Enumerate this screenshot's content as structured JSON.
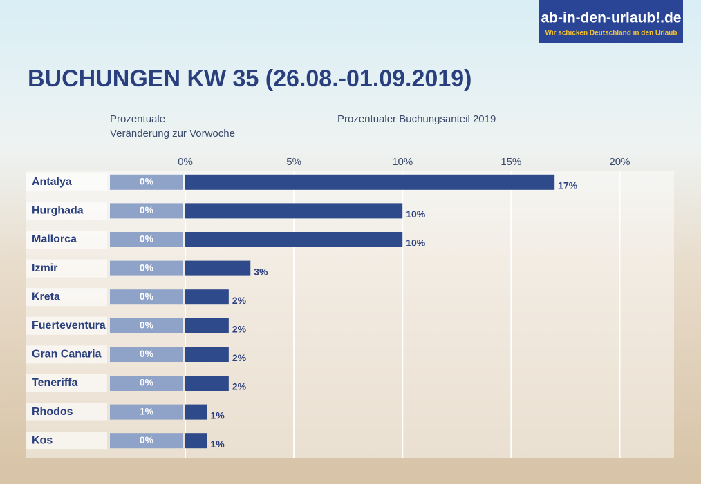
{
  "logo": {
    "name": "ab-in-den-urlaub!.de",
    "slogan": "Wir schicken Deutschland in den Urlaub"
  },
  "chart_data": {
    "type": "hbar",
    "title": "BUCHUNGEN KW 35 (26.08.-01.09.2019)",
    "categories": [
      "Antalya",
      "Hurghada",
      "Mallorca",
      "Izmir",
      "Kreta",
      "Fuerteventura",
      "Gran Canaria",
      "Teneriffa",
      "Rhodos",
      "Kos"
    ],
    "series": [
      {
        "name": "Prozentualer Buchungsanteil 2019",
        "color": "#2e4a8b",
        "values": [
          17,
          10,
          10,
          3,
          2,
          2,
          2,
          2,
          1,
          1
        ],
        "value_labels": [
          "17%",
          "10%",
          "10%",
          "3%",
          "2%",
          "2%",
          "2%",
          "2%",
          "1%",
          "1%"
        ]
      },
      {
        "name": "Prozentuale\nVeränderung zur Vorwoche",
        "color": "#8fa3c8",
        "values": [
          0,
          0,
          0,
          0,
          0,
          0,
          0,
          0,
          1,
          0
        ],
        "value_labels": [
          "0%",
          "0%",
          "0%",
          "0%",
          "0%",
          "0%",
          "0%",
          "0%",
          "1%",
          "0%"
        ]
      }
    ],
    "xlim": [
      0,
      22.5
    ],
    "xticks": [
      {
        "value": 0,
        "label": "0%"
      },
      {
        "value": 5,
        "label": "5%"
      },
      {
        "value": 10,
        "label": "10%"
      },
      {
        "value": 15,
        "label": "15%"
      },
      {
        "value": 20,
        "label": "20%"
      }
    ],
    "grid": true
  }
}
